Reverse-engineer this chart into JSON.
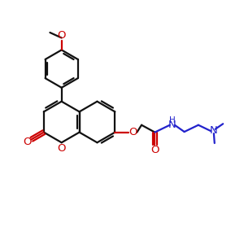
{
  "bg_color": "#ffffff",
  "rc": "#cc0000",
  "blc": "#2222cc",
  "bc": "#111111",
  "bw": 1.6,
  "figsize": [
    3.0,
    3.0
  ],
  "dpi": 100,
  "xlim": [
    0,
    10
  ],
  "ylim": [
    0,
    10
  ]
}
